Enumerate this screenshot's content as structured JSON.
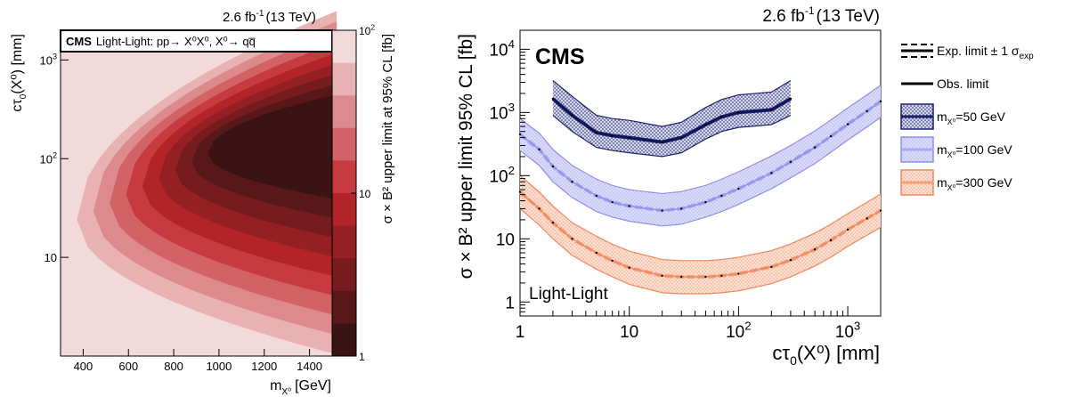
{
  "left_plot": {
    "lumi": "2.6 fb",
    "lumi_exp": "-1",
    "energy": "(13 TeV)",
    "banner_cms": "CMS",
    "banner_text": "Light-Light: pp→ X⁰X⁰, X⁰→ qq̅",
    "xlabel": "m",
    "xlabel_sub": "X⁰",
    "xlabel_unit": "[GeV]",
    "ylabel": "cτ",
    "ylabel_sub": "0",
    "ylabel_rest": "(X⁰) [mm]",
    "zlabel": "σ × B² upper limit at 95% CL [fb]",
    "x_ticks": [
      "400",
      "600",
      "800",
      "1000",
      "1200",
      "1400"
    ],
    "y_ticks": [
      {
        "base": "10",
        "exp": "3"
      },
      {
        "base": "10",
        "exp": "2"
      },
      {
        "base": "10",
        "exp": ""
      }
    ],
    "z_ticks": [
      {
        "base": "10",
        "exp": "2"
      },
      {
        "base": "10",
        "exp": ""
      },
      {
        "base": "1",
        "exp": ""
      }
    ]
  },
  "right_plot": {
    "lumi": "2.6 fb",
    "lumi_exp": "-1",
    "energy": "(13 TeV)",
    "cms": "CMS",
    "region": "Light-Light",
    "xlabel": "cτ",
    "xlabel_sub": "0",
    "xlabel_rest": "(X⁰) [mm]",
    "ylabel": "σ × B² upper limit 95% CL [fb]",
    "x_ticks": [
      {
        "base": "1",
        "exp": ""
      },
      {
        "base": "10",
        "exp": ""
      },
      {
        "base": "10",
        "exp": "2"
      },
      {
        "base": "10",
        "exp": "3"
      }
    ],
    "y_ticks": [
      {
        "base": "10",
        "exp": "4"
      },
      {
        "base": "10",
        "exp": "3"
      },
      {
        "base": "10",
        "exp": "2"
      },
      {
        "base": "10",
        "exp": ""
      },
      {
        "base": "1",
        "exp": ""
      }
    ],
    "legend": {
      "exp_label": "Exp. limit ± 1 σ",
      "exp_sub": "exp",
      "obs_label": "Obs. limit",
      "mass_prefix": "m",
      "mass_sub": "X⁰",
      "entries": [
        "=50 GeV",
        "=100 GeV",
        "=300 GeV"
      ]
    }
  },
  "colors": {
    "m50": "#1a1f6e",
    "m100": "#8e90ee",
    "m300": "#f0885c",
    "dark_red": "#3a1414",
    "light_red": "#f3dada"
  },
  "chart_data": [
    {
      "type": "heatmap",
      "xlabel": "m_X0 [GeV]",
      "ylabel": "cτ0(X0) [mm]",
      "zlabel": "σ × B² upper limit at 95% CL [fb]",
      "xlim": [
        300,
        1500
      ],
      "ylim": [
        1,
        2000
      ],
      "zlim": [
        1,
        100
      ],
      "y_log": true,
      "z_log": true,
      "level_boundaries": [
        {
          "level": 0,
          "ctau": [
            0.3,
            0.55
          ],
          "mass": [
            -1,
            -1
          ]
        },
        {
          "level": 1,
          "ctau": [
            1.3,
            3.3
          ],
          "mass": [
            300,
            1500
          ]
        },
        {
          "level": 2,
          "ctau": [
            1.55,
            2.8
          ],
          "mass": [
            300,
            1500
          ]
        },
        {
          "level": 3,
          "ctau": [
            1.2,
            3.3
          ],
          "mass": [
            400,
            1500
          ]
        },
        {
          "level": 4,
          "ctau": [
            0.95,
            3.4
          ],
          "mass": [
            480,
            1500
          ]
        },
        {
          "level": 5,
          "ctau": [
            0.7,
            3.6
          ],
          "mass": [
            300,
            1500
          ]
        },
        {
          "level": 6,
          "ctau": [
            0.45,
            3.8
          ],
          "mass": [
            300,
            1500
          ]
        },
        {
          "level": 7,
          "ctau": [
            0.25,
            4.0
          ],
          "mass": [
            300,
            1500
          ]
        }
      ]
    },
    {
      "type": "line",
      "x_log": true,
      "y_log": true,
      "xlim": [
        1,
        2000
      ],
      "ylim": [
        0.6,
        20000
      ],
      "series": [
        {
          "name": "m_X0=50 GeV",
          "x": [
            2,
            3,
            5,
            7,
            10,
            20,
            30,
            50,
            70,
            100,
            200,
            300
          ],
          "expected": [
            1650,
            900,
            480,
            430,
            400,
            340,
            400,
            640,
            850,
            1000,
            1100,
            1650
          ],
          "observed": [
            1650,
            900,
            480,
            430,
            400,
            340,
            400,
            640,
            850,
            1000,
            1100,
            1650
          ],
          "sigma_up": [
            3200,
            1800,
            900,
            800,
            750,
            600,
            700,
            1200,
            1600,
            1900,
            2100,
            3200
          ],
          "sigma_down": [
            900,
            500,
            280,
            250,
            230,
            200,
            230,
            380,
            500,
            580,
            640,
            900
          ]
        },
        {
          "name": "m_X0=100 GeV",
          "x": [
            1,
            1.5,
            2,
            3,
            5,
            7,
            10,
            20,
            30,
            50,
            70,
            100,
            200,
            300,
            500,
            700,
            1000,
            1500,
            2000
          ],
          "expected": [
            450,
            260,
            140,
            80,
            48,
            38,
            33,
            28,
            30,
            38,
            48,
            62,
            110,
            165,
            280,
            420,
            650,
            1050,
            1500
          ],
          "observed": [
            450,
            260,
            140,
            80,
            48,
            38,
            33,
            28,
            30,
            38,
            48,
            62,
            110,
            165,
            280,
            420,
            650,
            1050,
            1500
          ],
          "sigma_up": [
            800,
            470,
            260,
            145,
            88,
            70,
            60,
            52,
            56,
            70,
            88,
            115,
            205,
            300,
            510,
            760,
            1180,
            1900,
            2700
          ],
          "sigma_down": [
            250,
            145,
            80,
            45,
            27,
            22,
            19,
            16,
            17,
            22,
            27,
            35,
            62,
            92,
            155,
            235,
            365,
            590,
            840
          ]
        },
        {
          "name": "m_X0=300 GeV",
          "x": [
            1,
            1.5,
            2,
            3,
            5,
            7,
            10,
            20,
            30,
            50,
            70,
            100,
            200,
            300,
            500,
            700,
            1000,
            1500,
            2000
          ],
          "expected": [
            55,
            30,
            18,
            10,
            6,
            4.5,
            3.5,
            2.6,
            2.5,
            2.5,
            2.6,
            2.8,
            3.6,
            4.6,
            6.8,
            9.5,
            14,
            21,
            28
          ],
          "observed": [
            55,
            30,
            18,
            10,
            6,
            4.5,
            3.5,
            2.6,
            2.5,
            2.5,
            2.6,
            2.8,
            3.6,
            4.6,
            6.8,
            9.5,
            14,
            21,
            28
          ],
          "sigma_up": [
            100,
            55,
            33,
            18,
            11,
            8.2,
            6.4,
            4.7,
            4.5,
            4.5,
            4.7,
            5.1,
            6.5,
            8.3,
            12.3,
            17,
            25,
            38,
            51
          ],
          "sigma_down": [
            30,
            16.5,
            10,
            5.5,
            3.3,
            2.5,
            1.9,
            1.4,
            1.35,
            1.35,
            1.4,
            1.5,
            1.95,
            2.5,
            3.7,
            5.1,
            7.6,
            11.4,
            15.2
          ]
        }
      ]
    }
  ]
}
